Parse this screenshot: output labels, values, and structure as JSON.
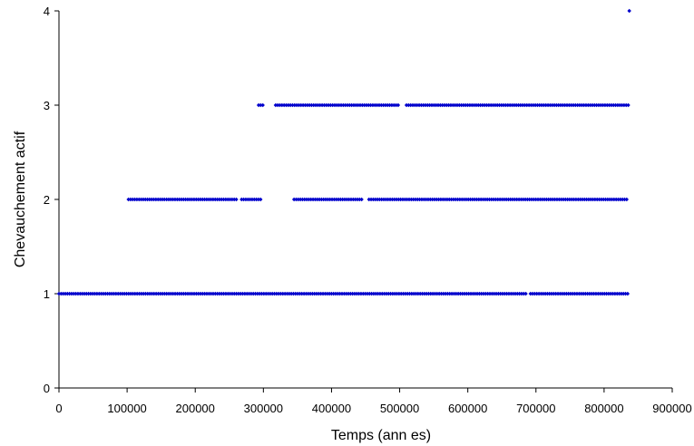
{
  "chart_data": {
    "type": "scatter",
    "xlabel": "Temps (ann es)",
    "ylabel": "Chevauchement actif",
    "xlim": [
      0,
      900000
    ],
    "ylim": [
      0,
      4
    ],
    "x_ticks": [
      "0",
      "100000",
      "200000",
      "300000",
      "400000",
      "500000",
      "600000",
      "700000",
      "800000",
      "900000"
    ],
    "y_ticks": [
      "0",
      "1",
      "2",
      "3",
      "4"
    ],
    "grid": false,
    "legend": "none",
    "marker_color": "#0000cc",
    "levels": [
      {
        "y": 1,
        "segments": [
          [
            0,
            688000
          ],
          [
            692000,
            835000
          ]
        ]
      },
      {
        "y": 2,
        "segments": [
          [
            102000,
            155000
          ],
          [
            158000,
            262000
          ],
          [
            268000,
            297000
          ],
          [
            345000,
            445000
          ],
          [
            455000,
            835000
          ]
        ]
      },
      {
        "y": 3,
        "segments": [
          [
            293000,
            300000
          ],
          [
            318000,
            498000
          ],
          [
            510000,
            838000
          ]
        ]
      },
      {
        "y": 4,
        "points": [
          837000
        ]
      }
    ]
  }
}
